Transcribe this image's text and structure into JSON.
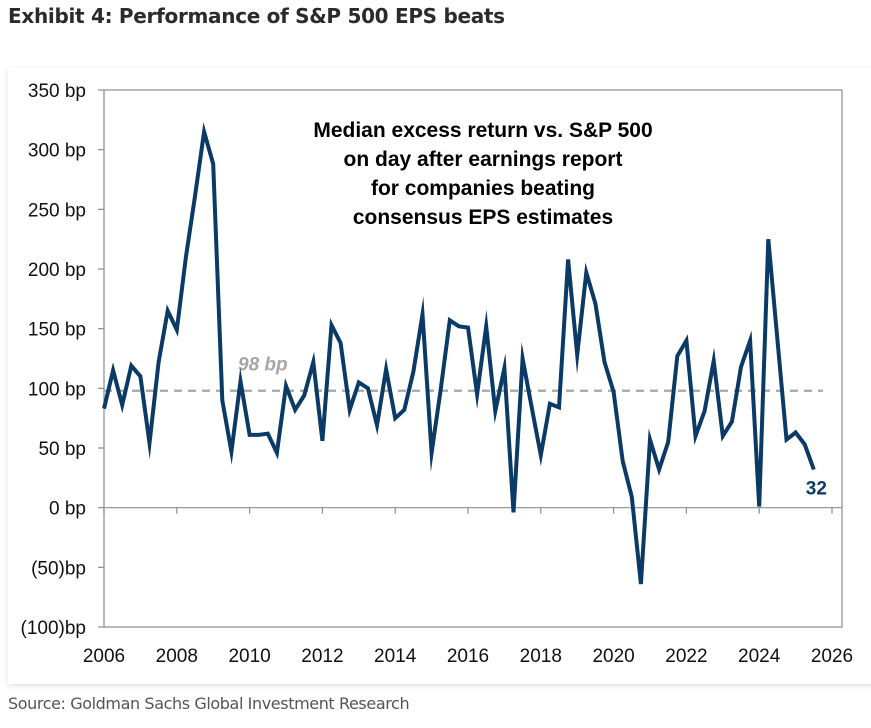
{
  "header": {
    "title": "Exhibit 4: Performance of S&P 500 EPS beats"
  },
  "footer": {
    "source": "Source: Goldman Sachs Global Investment Research"
  },
  "colors": {
    "line": "#0b3a66",
    "average": "#a6a6a6",
    "axis": "#8c8c8c"
  },
  "chart_data": {
    "type": "line",
    "title": "Median excess return vs. S&P 500 on day after earnings report for companies beating consensus EPS estimates",
    "annotation_lines": [
      "Median excess return vs. S&P 500",
      "on day after earnings report",
      "for companies beating",
      "consensus EPS estimates"
    ],
    "xlabel": "",
    "ylabel": "",
    "xlim": [
      2006,
      2026
    ],
    "ylim": [
      -100,
      350
    ],
    "x_ticks": [
      2006,
      2008,
      2010,
      2012,
      2014,
      2016,
      2018,
      2020,
      2022,
      2024,
      2026
    ],
    "x_tick_labels": [
      "2006",
      "2008",
      "2010",
      "2012",
      "2014",
      "2016",
      "2018",
      "2020",
      "2022",
      "2024",
      "2026"
    ],
    "y_ticks": [
      350,
      300,
      250,
      200,
      150,
      100,
      50,
      0,
      -50,
      -100
    ],
    "y_tick_labels": [
      "350 bp",
      "300 bp",
      "250 bp",
      "200 bp",
      "150 bp",
      "100 bp",
      "50 bp",
      "0 bp",
      "(50)bp",
      "(100)bp"
    ],
    "grid": false,
    "legend": "none",
    "average": {
      "value": 98,
      "label": "98 bp",
      "start": 2006,
      "end": 2025.75
    },
    "last_value_label": "32",
    "series": [
      {
        "name": "Median excess return (bp)",
        "start": 2006.0,
        "step": 0.25,
        "values": [
          83,
          115,
          86,
          119,
          110,
          54,
          122,
          165,
          149,
          210,
          261,
          315,
          288,
          90,
          47,
          106,
          61,
          61,
          62,
          46,
          102,
          82,
          94,
          122,
          56,
          153,
          138,
          82,
          105,
          100,
          69,
          116,
          75,
          82,
          114,
          162,
          46,
          99,
          157,
          152,
          151,
          95,
          152,
          81,
          117,
          -4,
          125,
          84,
          44,
          87,
          84,
          208,
          128,
          197,
          171,
          122,
          97,
          39,
          9,
          -64,
          57,
          32,
          55,
          127,
          140,
          60,
          81,
          123,
          60,
          72,
          118,
          140,
          1,
          225,
          141,
          57,
          63,
          53,
          32
        ]
      }
    ]
  }
}
